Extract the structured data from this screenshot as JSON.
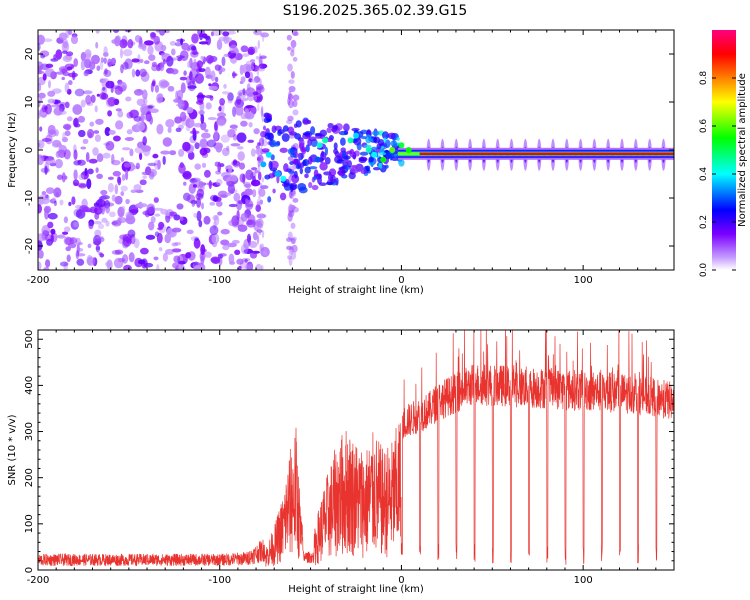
{
  "figure_title": "S196.2025.365.02.39.G15",
  "chart_data": [
    {
      "type": "heatmap",
      "title": "S196.2025.365.02.39.G15",
      "xlabel": "Height of straight line (km)",
      "ylabel": "Frequency (Hz)",
      "xlim": [
        -200,
        150
      ],
      "ylim": [
        -25,
        25
      ],
      "x_ticks": [
        -200,
        -100,
        0,
        100
      ],
      "y_ticks": [
        -20,
        -10,
        0,
        10,
        20
      ],
      "colorbar": {
        "label": "Normalized spectral amplitude",
        "range": [
          0,
          1
        ],
        "ticks": [
          "0.0",
          "0.2",
          "0.4",
          "0.6",
          "0.8"
        ],
        "colors": [
          "#ffffff",
          "#7a00ff",
          "#0000ff",
          "#00ffff",
          "#00ff00",
          "#ffff00",
          "#ff8000",
          "#ff0000",
          "#ff00a0"
        ]
      },
      "regions": [
        {
          "name": "noise",
          "x_range": [
            -200,
            -75
          ],
          "amplitude": 0.1
        },
        {
          "name": "transition",
          "x_range": [
            -75,
            0
          ],
          "amplitude": 0.3
        },
        {
          "name": "signal",
          "x_range": [
            0,
            150
          ],
          "frequency_hz": -0.8,
          "amplitude": 0.9
        }
      ]
    },
    {
      "type": "line",
      "xlabel": "Height of straight line (km)",
      "ylabel": "SNR (10 * v/v)",
      "xlim": [
        -200,
        150
      ],
      "ylim": [
        0,
        520
      ],
      "x_ticks": [
        -200,
        -100,
        0,
        100
      ],
      "y_ticks": [
        0,
        100,
        200,
        300,
        400,
        500
      ],
      "color": "#e8332e",
      "series": [
        {
          "name": "SNR envelope",
          "x": [
            -200,
            -150,
            -100,
            -85,
            -75,
            -70,
            -65,
            -62,
            -58,
            -55,
            -52,
            -48,
            -45,
            -40,
            -35,
            -30,
            -25,
            -20,
            -15,
            -10,
            -5,
            0,
            5,
            10,
            15,
            20,
            30,
            40,
            60,
            80,
            100,
            120,
            140,
            150
          ],
          "values": [
            22,
            22,
            22,
            25,
            45,
            90,
            160,
            240,
            300,
            110,
            20,
            80,
            140,
            210,
            270,
            300,
            270,
            250,
            290,
            250,
            270,
            330,
            340,
            350,
            360,
            380,
            400,
            420,
            415,
            410,
            405,
            400,
            390,
            380
          ]
        }
      ],
      "dropouts_every_km": 10,
      "dropout_min": 10
    }
  ]
}
